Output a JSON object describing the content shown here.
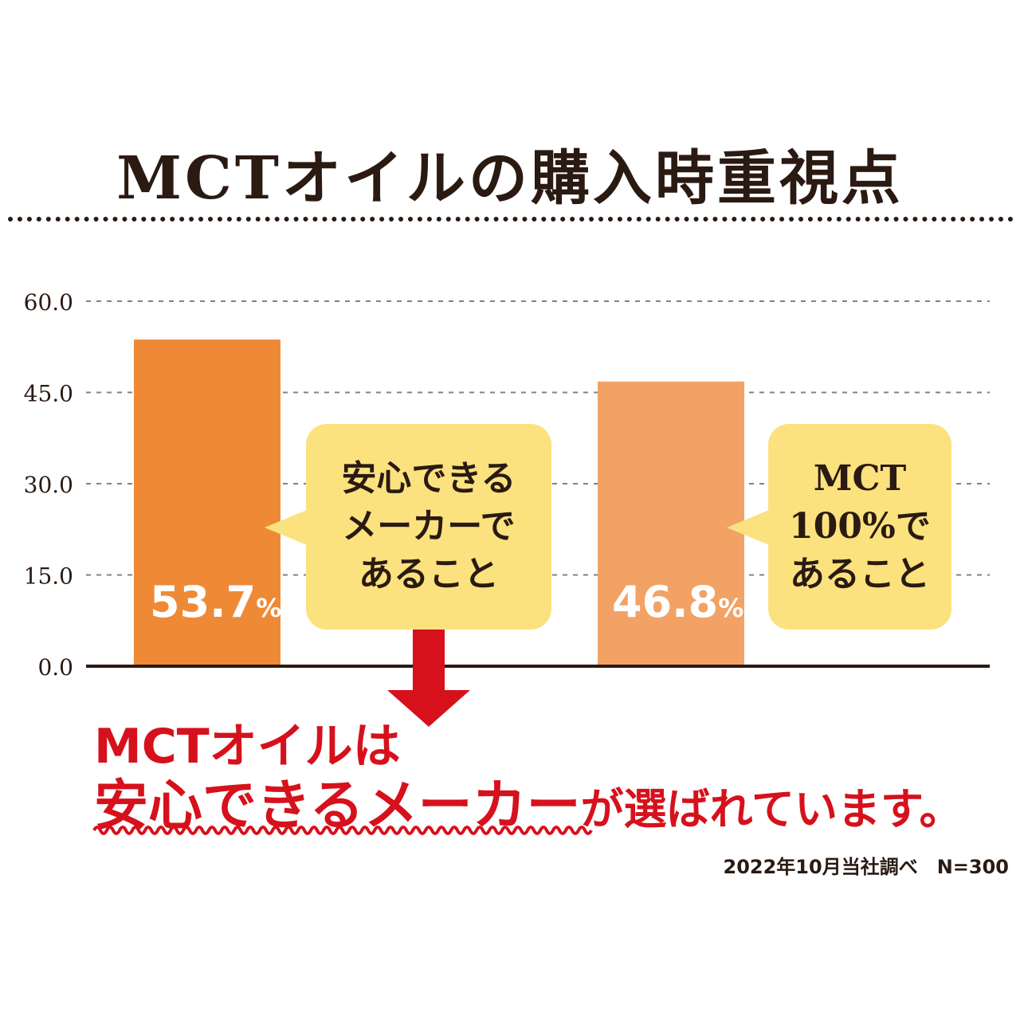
{
  "title": "MCTオイルの購入時重視点",
  "colors": {
    "text": "#2a1a12",
    "bar_1": "#ee8a36",
    "bar_2": "#f2a265",
    "bubble": "#fbe27e",
    "accent_red": "#d6111c",
    "grid": "#8a8078"
  },
  "chart_data": {
    "type": "bar",
    "categories": [
      "安心できるメーカーであること",
      "MCT100%であること"
    ],
    "values": [
      53.7,
      46.8
    ],
    "value_labels": [
      "53.7",
      "46.8"
    ],
    "value_unit": "%",
    "ylim": [
      0,
      60
    ],
    "yticks": [
      0,
      15,
      30,
      45,
      60
    ],
    "ytick_labels": [
      "0.0",
      "15.0",
      "30.0",
      "45.0",
      "60.0"
    ],
    "grid": "dashed horizontal",
    "title": "MCTオイルの購入時重視点",
    "xlabel": "",
    "ylabel": "",
    "callouts": [
      [
        "安心できる",
        "メーカーで",
        "あること"
      ],
      [
        "MCT",
        "100%で",
        "あること"
      ]
    ]
  },
  "conclusion": {
    "line1": "MCTオイルは",
    "line2_main": "安心できるメーカー",
    "line2_rest": "が選ばれています。"
  },
  "source_note": "2022年10月当社調べ　N=300"
}
